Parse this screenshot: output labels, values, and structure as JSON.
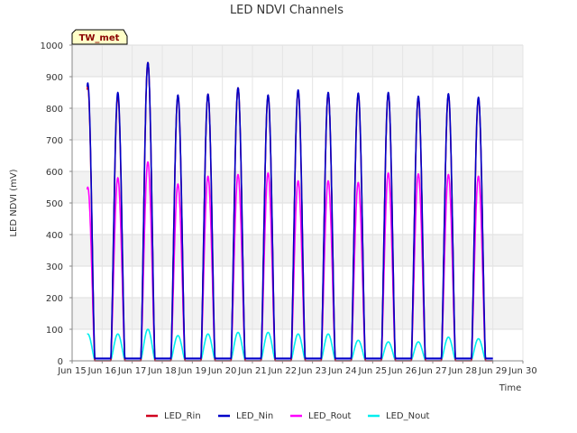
{
  "chart_data": {
    "type": "line",
    "title": "LED NDVI Channels",
    "xlabel": "Time",
    "ylabel": "LED NDVI (mV)",
    "site_label": "TW_met",
    "xlim": [
      "2024-06-15",
      "2024-06-30"
    ],
    "ylim": [
      0,
      1000
    ],
    "x_tick_values": [
      "2024-06-15",
      "2024-06-16",
      "2024-06-17",
      "2024-06-18",
      "2024-06-19",
      "2024-06-20",
      "2024-06-21",
      "2024-06-22",
      "2024-06-23",
      "2024-06-24",
      "2024-06-25",
      "2024-06-26",
      "2024-06-27",
      "2024-06-28",
      "2024-06-29",
      "2024-06-30"
    ],
    "x_tick_labels": [
      "Jun 15",
      "Jun 16",
      "Jun 17",
      "Jun 18",
      "Jun 19",
      "Jun 20",
      "Jun 21",
      "Jun 22",
      "Jun 23",
      "Jun 24",
      "Jun 25",
      "Jun 26",
      "Jun 27",
      "Jun 28",
      "Jun 29",
      "Jun 30"
    ],
    "y_ticks": [
      0,
      100,
      200,
      300,
      400,
      500,
      600,
      700,
      800,
      900,
      1000
    ],
    "grid": true,
    "background_bands": "alternating light gray",
    "legend_position": "bottom",
    "data_start": "2024-06-15 12:00",
    "data_end": "2024-06-29 00:00",
    "diurnal_peak_time": "12:30",
    "series": [
      {
        "name": "LED_Rin",
        "color": "#d0001f",
        "daily_peaks": [
          870,
          840,
          945,
          840,
          845,
          865,
          840,
          855,
          848,
          845,
          848,
          835,
          843,
          832
        ]
      },
      {
        "name": "LED_Nin",
        "color": "#0000c8",
        "daily_peaks": [
          880,
          850,
          945,
          842,
          845,
          865,
          842,
          858,
          850,
          848,
          850,
          838,
          846,
          835
        ],
        "night_value": 8
      },
      {
        "name": "LED_Rout",
        "color": "#ff00ff",
        "daily_peaks": [
          550,
          580,
          630,
          560,
          585,
          590,
          595,
          570,
          570,
          565,
          595,
          592,
          590,
          585
        ],
        "night_value": 5
      },
      {
        "name": "LED_Nout",
        "color": "#00eeee",
        "daily_peaks": [
          85,
          85,
          100,
          80,
          85,
          90,
          90,
          85,
          85,
          65,
          60,
          60,
          75,
          70
        ],
        "night_value": 2
      }
    ]
  }
}
